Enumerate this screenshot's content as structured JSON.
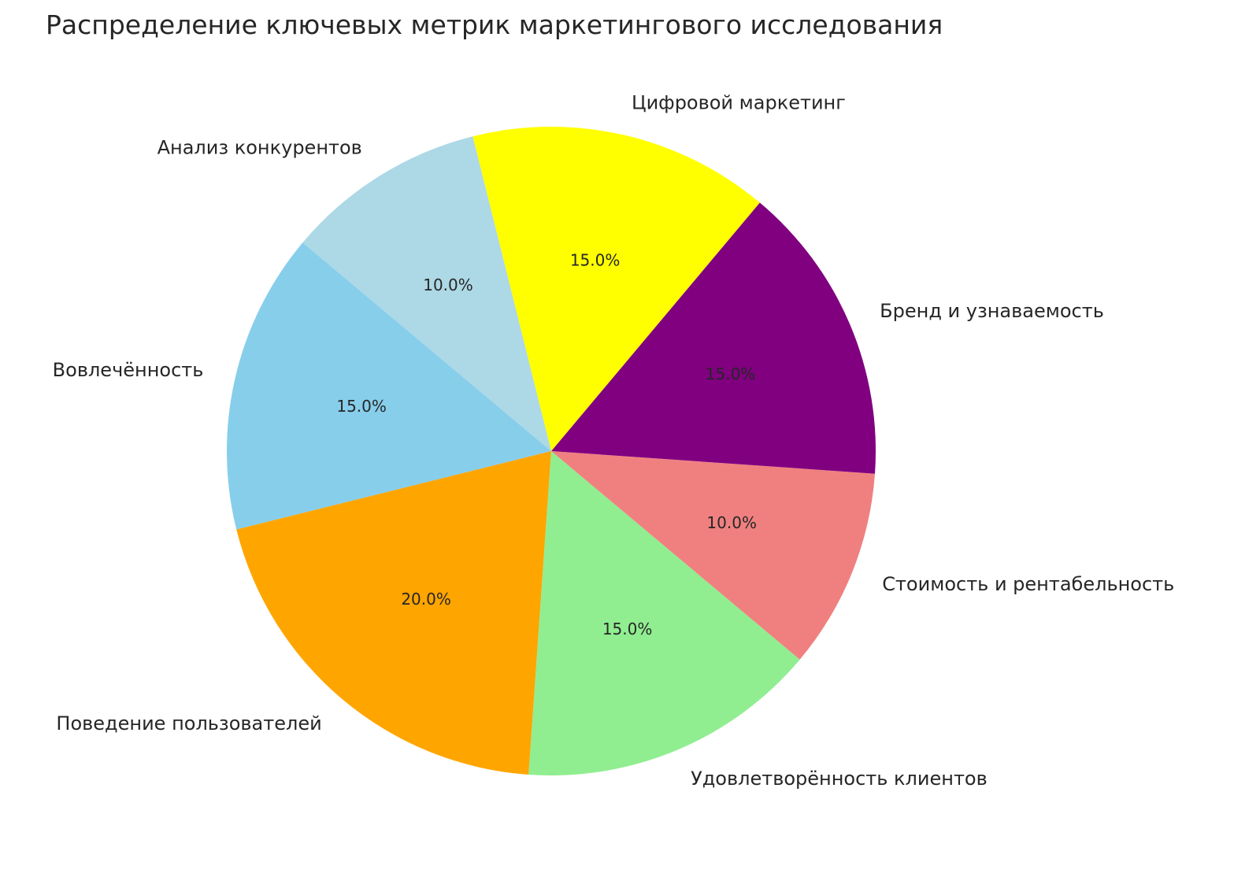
{
  "chart_data": {
    "type": "pie",
    "title": "Распределение ключевых метрик маркетингового исследования",
    "start_angle_deg": 140,
    "direction": "counterclockwise",
    "categories": [
      "Вовлечённость",
      "Поведение пользователей",
      "Удовлетворённость клиентов",
      "Стоимость и рентабельность",
      "Бренд и узнаваемость",
      "Цифровой маркетинг",
      "Анализ конкурентов"
    ],
    "values": [
      15,
      20,
      15,
      10,
      15,
      15,
      10
    ],
    "pct_labels": [
      "15.0%",
      "20.0%",
      "15.0%",
      "10.0%",
      "15.0%",
      "15.0%",
      "10.0%"
    ],
    "colors": [
      "#87ceeb",
      "#ffa500",
      "#90ee90",
      "#f08080",
      "#800080",
      "#ffff00",
      "#add8e6"
    ]
  }
}
